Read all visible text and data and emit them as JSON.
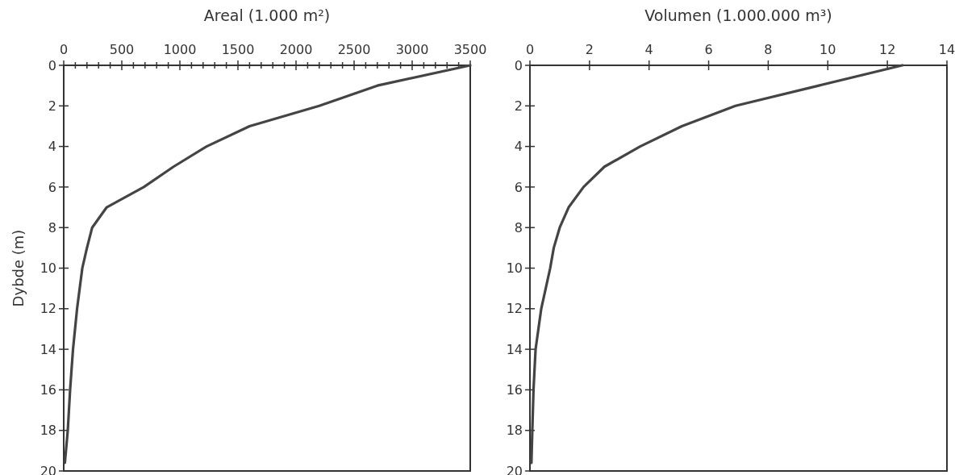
{
  "chart_data": [
    {
      "type": "line",
      "xlabel": "Areal (1.000 m²)",
      "ylabel": "Dybde (m)",
      "xlim": [
        0,
        3500
      ],
      "ylim": [
        20,
        0
      ],
      "xticks": [
        0,
        {
          "value": 100,
          "label": null
        },
        {
          "value": 200,
          "label": null
        },
        {
          "value": 300,
          "label": null
        },
        {
          "value": 400,
          "label": null
        },
        500,
        {
          "value": 600,
          "label": null
        },
        {
          "value": 700,
          "label": null
        },
        {
          "value": 800,
          "label": null
        },
        {
          "value": 900,
          "label": null
        },
        1000,
        {
          "value": 1100,
          "label": null
        },
        {
          "value": 1200,
          "label": null
        },
        {
          "value": 1300,
          "label": null
        },
        {
          "value": 1400,
          "label": null
        },
        1500,
        {
          "value": 1600,
          "label": null
        },
        {
          "value": 1700,
          "label": null
        },
        {
          "value": 1800,
          "label": null
        },
        {
          "value": 1900,
          "label": null
        },
        2000,
        {
          "value": 2100,
          "label": null
        },
        {
          "value": 2200,
          "label": null
        },
        {
          "value": 2300,
          "label": null
        },
        {
          "value": 2400,
          "label": null
        },
        2500,
        {
          "value": 2600,
          "label": null
        },
        {
          "value": 2700,
          "label": null
        },
        {
          "value": 2800,
          "label": null
        },
        {
          "value": 2900,
          "label": null
        },
        3000,
        {
          "value": 3100,
          "label": null
        },
        {
          "value": 3200,
          "label": null
        },
        {
          "value": 3300,
          "label": null
        },
        {
          "value": 3400,
          "label": null
        },
        3500
      ],
      "yticks": [
        0,
        2,
        4,
        6,
        8,
        10,
        12,
        14,
        16,
        18,
        20
      ],
      "grid": false,
      "line_style": "solid",
      "marker": "none",
      "series": [
        {
          "color": "#444444",
          "x": [
            3500,
            2700,
            2200,
            1600,
            1230,
            945,
            690,
            370,
            245,
            200,
            160,
            115,
            80,
            55,
            35,
            10
          ],
          "values": [
            0,
            1,
            2,
            3,
            4,
            5,
            6,
            7,
            8,
            9,
            10,
            12,
            14,
            16,
            18,
            19.6
          ]
        }
      ]
    },
    {
      "type": "line",
      "xlabel": "Volumen (1.000.000 m³)",
      "xlim": [
        0,
        14
      ],
      "ylim": [
        20,
        0
      ],
      "xticks": [
        0,
        2,
        4,
        6,
        8,
        10,
        12,
        14
      ],
      "yticks": [
        0,
        2,
        4,
        6,
        8,
        10,
        12,
        14,
        16,
        18,
        20
      ],
      "grid": false,
      "line_style": "solid",
      "marker": "none",
      "series": [
        {
          "color": "#444444",
          "x": [
            12.5,
            9.7,
            6.9,
            5.1,
            3.7,
            2.5,
            1.8,
            1.3,
            1.0,
            0.8,
            0.68,
            0.38,
            0.19,
            0.12,
            0.08,
            0.05
          ],
          "values": [
            0,
            1,
            2,
            3,
            4,
            5,
            6,
            7,
            8,
            9,
            10,
            12,
            14,
            16,
            18,
            19.6
          ]
        }
      ]
    }
  ]
}
